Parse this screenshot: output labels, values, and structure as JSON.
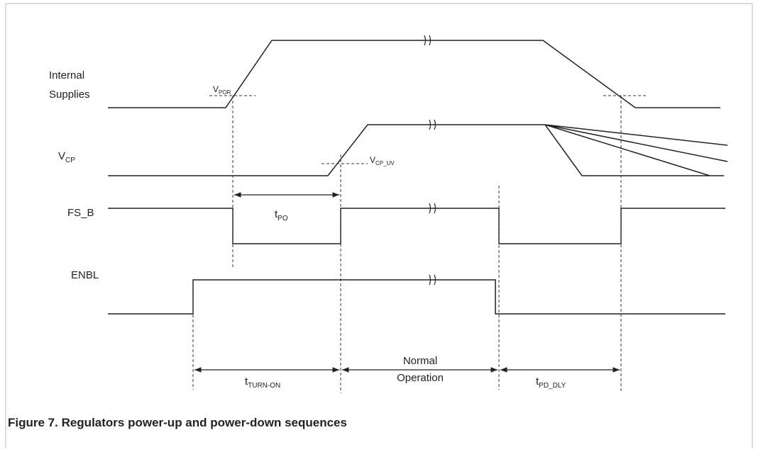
{
  "signals": [
    {
      "label": [
        "Internal",
        "Supplies"
      ]
    },
    {
      "label": {
        "main": "V",
        "sub": "CP"
      }
    },
    {
      "label": "FS_B"
    },
    {
      "label": "ENBL"
    }
  ],
  "annotations": {
    "v_por": {
      "main": "V",
      "sub": "POR"
    },
    "v_cp_uv": {
      "main": "V",
      "sub": "CP_UV"
    },
    "t_po": {
      "main": "t",
      "sub": "PO"
    },
    "t_turn_on": {
      "main": "t",
      "sub": "TURN-ON"
    },
    "normal_operation": [
      "Normal",
      "Operation"
    ],
    "t_pd_dly": {
      "main": "t",
      "sub": "PD_DLY"
    }
  },
  "caption": "Figure 7.  Regulators power-up and power-down sequences"
}
